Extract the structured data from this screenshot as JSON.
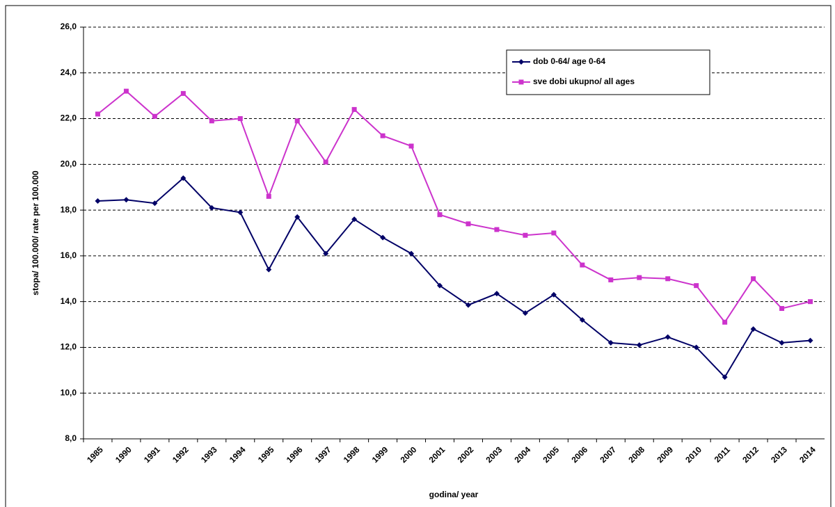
{
  "chart_data": {
    "type": "line",
    "xlabel": "godina/ year",
    "ylabel": "stopa/ 100.000/ rate per 100.000",
    "categories": [
      "1985",
      "1990",
      "1991",
      "1992",
      "1993",
      "1994",
      "1995",
      "1996",
      "1997",
      "1998",
      "1999",
      "2000",
      "2001",
      "2002",
      "2003",
      "2004",
      "2005",
      "2006",
      "2007",
      "2008",
      "2009",
      "2010",
      "2011",
      "2012",
      "2013",
      "2014"
    ],
    "series": [
      {
        "name": "dob 0-64/ age 0-64",
        "color": "#000066",
        "marker": "diamond",
        "values": [
          18.4,
          18.45,
          18.3,
          19.4,
          18.1,
          17.9,
          15.4,
          17.7,
          16.1,
          17.6,
          16.8,
          16.1,
          14.7,
          13.85,
          14.35,
          13.5,
          14.3,
          13.2,
          12.2,
          12.1,
          12.45,
          12.0,
          10.7,
          12.8,
          12.2,
          12.3
        ]
      },
      {
        "name": "sve dobi ukupno/ all ages",
        "color": "#cc33cc",
        "marker": "square",
        "values": [
          22.2,
          23.2,
          22.1,
          23.1,
          21.9,
          22.0,
          18.6,
          21.9,
          20.1,
          22.4,
          21.25,
          20.8,
          17.8,
          17.4,
          17.15,
          16.9,
          17.0,
          15.6,
          14.95,
          15.05,
          15.0,
          14.7,
          13.1,
          15.0,
          13.7,
          14.0
        ]
      }
    ],
    "ylim": [
      8,
      26
    ],
    "yticks": [
      {
        "value": 8,
        "label": "8,0"
      },
      {
        "value": 10,
        "label": "10,0"
      },
      {
        "value": 12,
        "label": "12,0"
      },
      {
        "value": 14,
        "label": "14,0"
      },
      {
        "value": 16,
        "label": "16,0"
      },
      {
        "value": 18,
        "label": "18,0"
      },
      {
        "value": 20,
        "label": "20,0"
      },
      {
        "value": 22,
        "label": "22,0"
      },
      {
        "value": 24,
        "label": "24,0"
      },
      {
        "value": 26,
        "label": "26,0"
      }
    ],
    "grid": true,
    "legend": "upper right"
  }
}
